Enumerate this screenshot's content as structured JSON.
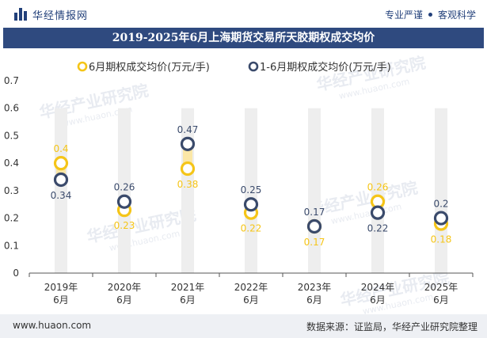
{
  "header": {
    "brand": "华经情报网",
    "tagline_left": "专业严谨",
    "tagline_right": "客观科学"
  },
  "footer": {
    "website": "www.huaon.com",
    "source": "数据来源：证监局，华经产业研究院整理"
  },
  "watermark": {
    "text": "华经产业研究院",
    "url": "www.huaon.com"
  },
  "chart_data": {
    "type": "scatter",
    "title": "2019-2025年6月上海期货交易所天胶期权成交均价",
    "categories": [
      [
        "2019年",
        "6月"
      ],
      [
        "2020年",
        "6月"
      ],
      [
        "2021年",
        "6月"
      ],
      [
        "2022年",
        "6月"
      ],
      [
        "2023年",
        "6月"
      ],
      [
        "2024年",
        "6月"
      ],
      [
        "2025年",
        "6月"
      ]
    ],
    "series": [
      {
        "name": "6月期权成交均价(万元/手)",
        "values": [
          0.4,
          0.23,
          0.38,
          0.22,
          0.17,
          0.26,
          0.18
        ],
        "labels": [
          "0.4",
          "0.23",
          "0.38",
          "0.22",
          "0.17",
          "0.26",
          "0.18"
        ],
        "color": "#f5c518"
      },
      {
        "name": "1-6月期权成交均价(万元/手)",
        "values": [
          0.34,
          0.26,
          0.47,
          0.25,
          0.17,
          0.22,
          0.2
        ],
        "labels": [
          "0.34",
          "0.26",
          "0.47",
          "0.25",
          "0.17",
          "0.22",
          "0.2"
        ],
        "color": "#3a4a6b"
      }
    ],
    "ylim": [
      0,
      0.7
    ],
    "yticks": [
      "0",
      "0.1",
      "0.2",
      "0.3",
      "0.4",
      "0.5",
      "0.6",
      "0.7"
    ],
    "legend_position": "top-center"
  }
}
